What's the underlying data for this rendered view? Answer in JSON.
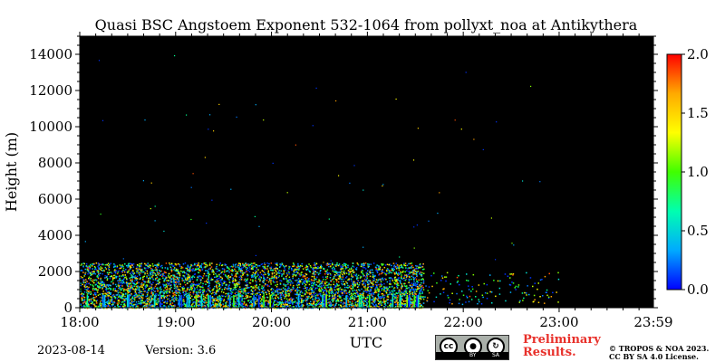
{
  "chart_data": {
    "type": "heatmap",
    "title": "Quasi BSC Angstoem Exponent 532-1064 from pollyxt_noa at Antikythera",
    "xlabel": "UTC",
    "ylabel": "Height (m)",
    "x_tick_labels": [
      "18:00",
      "19:00",
      "20:00",
      "21:00",
      "22:00",
      "23:00",
      "23:59"
    ],
    "xlim": [
      "18:00",
      "23:59"
    ],
    "y_ticks": [
      0,
      2000,
      4000,
      6000,
      8000,
      10000,
      12000,
      14000
    ],
    "ylim": [
      0,
      15000
    ],
    "background_color": "#000000",
    "colorbar": {
      "ticks": [
        "0.0",
        "0.5",
        "1.0",
        "1.5",
        "2.0"
      ],
      "range": [
        0.0,
        2.0
      ],
      "colors": [
        "#0000ff",
        "#00aaff",
        "#00ffb0",
        "#40ff00",
        "#ffff00",
        "#ffaa00",
        "#ff0000"
      ]
    },
    "data_layer": {
      "time_range": [
        "18:00",
        "21:35"
      ],
      "height_range": [
        0,
        2500
      ],
      "sparse_time_range": [
        "21:35",
        "23:00"
      ],
      "sparse_height_range": [
        200,
        2000
      ]
    }
  },
  "footer": {
    "date": "2023-08-14",
    "version": "Version: 3.6",
    "preliminary_line1": "Preliminary",
    "preliminary_line2": "Results.",
    "copyright_line1": "© TROPOS & NOA 2023.",
    "copyright_line2": "CC BY SA 4.0 License.",
    "license_badge": {
      "icon_main": "cc",
      "icon_by": "BY",
      "icon_sa": "SA"
    }
  }
}
